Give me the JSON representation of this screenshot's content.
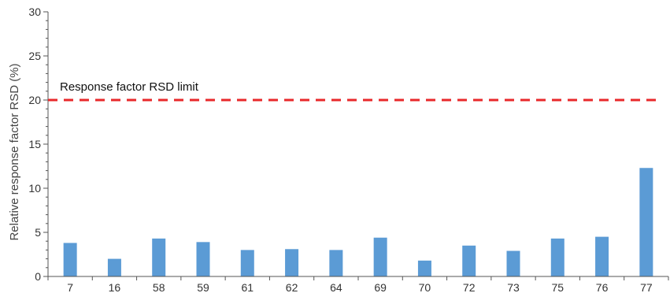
{
  "chart_data": {
    "type": "bar",
    "categories": [
      "7",
      "16",
      "58",
      "59",
      "61",
      "62",
      "64",
      "69",
      "70",
      "72",
      "73",
      "75",
      "76",
      "77"
    ],
    "values": [
      3.8,
      2.0,
      4.3,
      3.9,
      3.0,
      3.1,
      3.0,
      4.4,
      1.8,
      3.5,
      2.9,
      4.3,
      4.5,
      12.3
    ],
    "ylabel": "Relative response factor RSD (%)",
    "xlabel": "",
    "ylim": [
      0,
      30
    ],
    "yticks": [
      "0",
      "5",
      "10",
      "15",
      "20",
      "25",
      "30"
    ],
    "bar_color": "#5b9bd5",
    "reference_line": {
      "value": 20,
      "label": "Response factor RSD limit",
      "color": "#e8282b",
      "style": "dashed"
    },
    "grid": false,
    "legend": "none"
  }
}
